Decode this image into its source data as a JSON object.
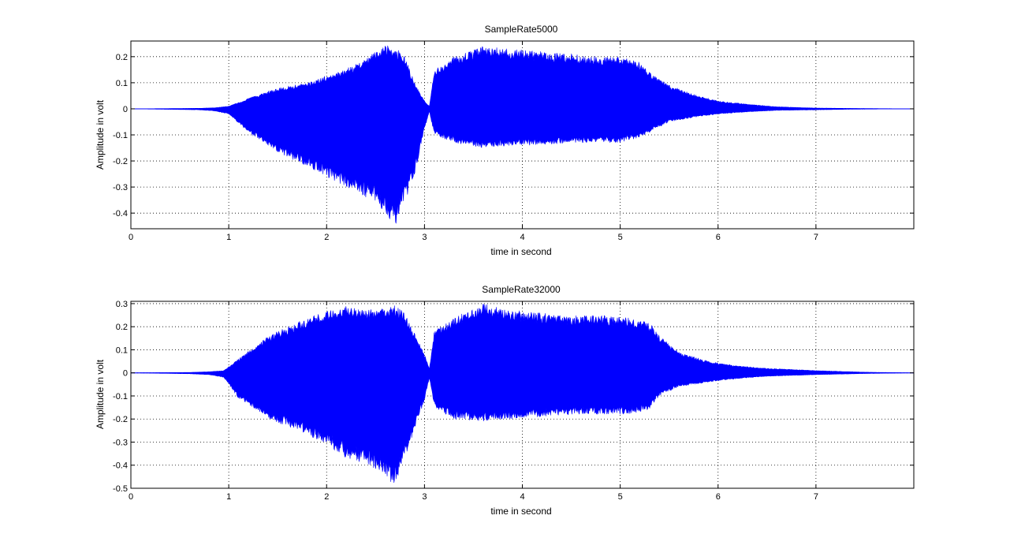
{
  "chart_data": [
    {
      "type": "area",
      "title": "SampleRate5000",
      "xlabel": "time in second",
      "ylabel": "Amplitude in volt",
      "xlim": [
        0,
        8
      ],
      "ylim": [
        -0.46,
        0.26
      ],
      "xticks": [
        0,
        1,
        2,
        3,
        4,
        5,
        6,
        7
      ],
      "yticks": [
        0.2,
        0.1,
        0,
        -0.1,
        -0.2,
        -0.3,
        -0.4
      ],
      "grid": true,
      "series_color": "#0000ff",
      "envelope": {
        "x": [
          0,
          0.7,
          0.85,
          1.0,
          1.2,
          1.5,
          1.8,
          2.1,
          2.3,
          2.5,
          2.6,
          2.7,
          2.8,
          2.9,
          3.0,
          3.05,
          3.1,
          3.3,
          3.6,
          3.9,
          4.2,
          4.5,
          4.8,
          5.0,
          5.2,
          5.3,
          5.5,
          5.8,
          6.0,
          6.3,
          6.6,
          7.0,
          7.3,
          8.0
        ],
        "upper": [
          0,
          0.002,
          0.004,
          0.01,
          0.04,
          0.08,
          0.1,
          0.14,
          0.17,
          0.22,
          0.25,
          0.24,
          0.2,
          0.1,
          0.03,
          0.01,
          0.15,
          0.2,
          0.24,
          0.23,
          0.22,
          0.21,
          0.2,
          0.2,
          0.18,
          0.14,
          0.09,
          0.05,
          0.03,
          0.018,
          0.008,
          0.003,
          0.002,
          0
        ],
        "lower": [
          0,
          -0.004,
          -0.008,
          -0.02,
          -0.09,
          -0.17,
          -0.22,
          -0.28,
          -0.32,
          -0.36,
          -0.4,
          -0.45,
          -0.36,
          -0.25,
          -0.08,
          -0.01,
          -0.1,
          -0.13,
          -0.15,
          -0.14,
          -0.14,
          -0.13,
          -0.13,
          -0.13,
          -0.11,
          -0.09,
          -0.05,
          -0.03,
          -0.02,
          -0.012,
          -0.006,
          -0.004,
          -0.002,
          0
        ]
      }
    },
    {
      "type": "area",
      "title": "SampleRate32000",
      "xlabel": "time in second",
      "ylabel": "Amplitude in volt",
      "xlim": [
        0,
        8
      ],
      "ylim": [
        -0.5,
        0.31
      ],
      "xticks": [
        0,
        1,
        2,
        3,
        4,
        5,
        6,
        7
      ],
      "yticks": [
        0.3,
        0.2,
        0.1,
        0,
        -0.1,
        -0.2,
        -0.3,
        -0.4,
        -0.5
      ],
      "grid": true,
      "series_color": "#0000ff",
      "envelope": {
        "x": [
          0,
          0.6,
          0.8,
          0.95,
          1.1,
          1.4,
          1.7,
          2.0,
          2.2,
          2.4,
          2.6,
          2.7,
          2.8,
          2.9,
          3.0,
          3.05,
          3.1,
          3.3,
          3.6,
          3.9,
          4.2,
          4.5,
          4.8,
          5.1,
          5.3,
          5.4,
          5.6,
          5.9,
          6.2,
          6.5,
          7.0,
          7.5,
          8.0
        ],
        "upper": [
          0,
          0.002,
          0.005,
          0.01,
          0.06,
          0.16,
          0.22,
          0.27,
          0.29,
          0.27,
          0.29,
          0.3,
          0.26,
          0.17,
          0.08,
          0.02,
          0.18,
          0.24,
          0.3,
          0.27,
          0.26,
          0.25,
          0.25,
          0.24,
          0.22,
          0.16,
          0.09,
          0.05,
          0.03,
          0.02,
          0.01,
          0.003,
          0
        ],
        "lower": [
          0,
          -0.004,
          -0.008,
          -0.02,
          -0.11,
          -0.2,
          -0.25,
          -0.31,
          -0.37,
          -0.4,
          -0.44,
          -0.5,
          -0.38,
          -0.24,
          -0.12,
          -0.02,
          -0.15,
          -0.2,
          -0.21,
          -0.2,
          -0.19,
          -0.18,
          -0.18,
          -0.18,
          -0.16,
          -0.1,
          -0.06,
          -0.04,
          -0.025,
          -0.015,
          -0.008,
          -0.003,
          0
        ]
      }
    }
  ]
}
